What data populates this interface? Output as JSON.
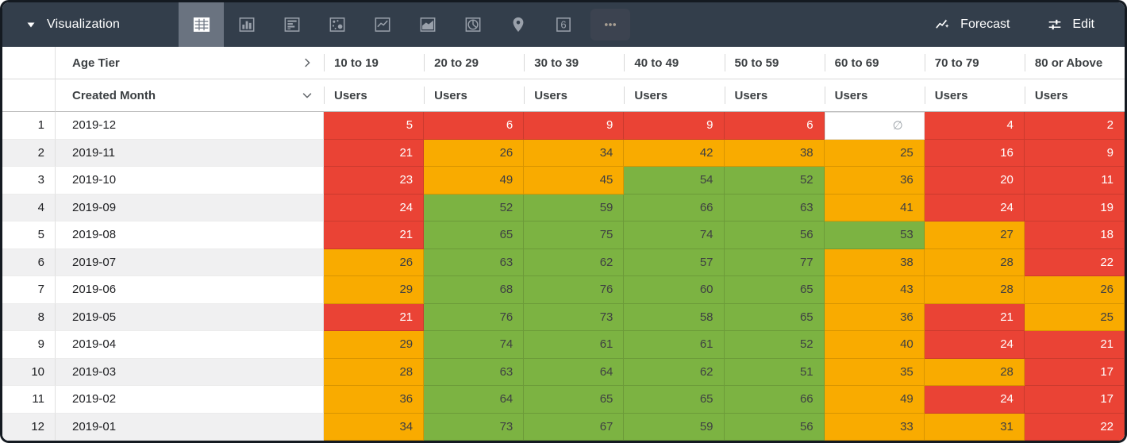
{
  "toolbar": {
    "title": "Visualization",
    "forecast_label": "Forecast",
    "edit_label": "Edit",
    "single_value_glyph": "6",
    "tabs": [
      {
        "name": "table",
        "selected": true
      },
      {
        "name": "column-chart",
        "selected": false
      },
      {
        "name": "bar-chart",
        "selected": false
      },
      {
        "name": "scatter-plot",
        "selected": false
      },
      {
        "name": "line-chart",
        "selected": false
      },
      {
        "name": "area-chart",
        "selected": false
      },
      {
        "name": "pie-chart",
        "selected": false
      },
      {
        "name": "map",
        "selected": false
      },
      {
        "name": "single-value",
        "selected": false
      },
      {
        "name": "more-options",
        "selected": false
      }
    ]
  },
  "table": {
    "pivot_field": "Age Tier",
    "row_field": "Created Month",
    "measure": "Users",
    "null_symbol": "∅",
    "columns": [
      "10 to 19",
      "20 to 29",
      "30 to 39",
      "40 to 49",
      "50 to 59",
      "60 to 69",
      "70 to 79",
      "80 or Above"
    ],
    "rows": [
      {
        "num": "1",
        "month": "2019-12",
        "values": [
          "5",
          "6",
          "9",
          "9",
          "6",
          null,
          "4",
          "2"
        ],
        "colors": [
          "red",
          "red",
          "red",
          "red",
          "red",
          "none",
          "red",
          "red"
        ]
      },
      {
        "num": "2",
        "month": "2019-11",
        "values": [
          "21",
          "26",
          "34",
          "42",
          "38",
          "25",
          "16",
          "9"
        ],
        "colors": [
          "red",
          "orange",
          "orange",
          "orange",
          "orange",
          "orange",
          "red",
          "red"
        ]
      },
      {
        "num": "3",
        "month": "2019-10",
        "values": [
          "23",
          "49",
          "45",
          "54",
          "52",
          "36",
          "20",
          "11"
        ],
        "colors": [
          "red",
          "orange",
          "orange",
          "green",
          "green",
          "orange",
          "red",
          "red"
        ]
      },
      {
        "num": "4",
        "month": "2019-09",
        "values": [
          "24",
          "52",
          "59",
          "66",
          "63",
          "41",
          "24",
          "19"
        ],
        "colors": [
          "red",
          "green",
          "green",
          "green",
          "green",
          "orange",
          "red",
          "red"
        ]
      },
      {
        "num": "5",
        "month": "2019-08",
        "values": [
          "21",
          "65",
          "75",
          "74",
          "56",
          "53",
          "27",
          "18"
        ],
        "colors": [
          "red",
          "green",
          "green",
          "green",
          "green",
          "green",
          "orange",
          "red"
        ]
      },
      {
        "num": "6",
        "month": "2019-07",
        "values": [
          "26",
          "63",
          "62",
          "57",
          "77",
          "38",
          "28",
          "22"
        ],
        "colors": [
          "orange",
          "green",
          "green",
          "green",
          "green",
          "orange",
          "orange",
          "red"
        ]
      },
      {
        "num": "7",
        "month": "2019-06",
        "values": [
          "29",
          "68",
          "76",
          "60",
          "65",
          "43",
          "28",
          "26"
        ],
        "colors": [
          "orange",
          "green",
          "green",
          "green",
          "green",
          "orange",
          "orange",
          "orange"
        ]
      },
      {
        "num": "8",
        "month": "2019-05",
        "values": [
          "21",
          "76",
          "73",
          "58",
          "65",
          "36",
          "21",
          "25"
        ],
        "colors": [
          "red",
          "green",
          "green",
          "green",
          "green",
          "orange",
          "red",
          "orange"
        ]
      },
      {
        "num": "9",
        "month": "2019-04",
        "values": [
          "29",
          "74",
          "61",
          "61",
          "52",
          "40",
          "24",
          "21"
        ],
        "colors": [
          "orange",
          "green",
          "green",
          "green",
          "green",
          "orange",
          "red",
          "red"
        ]
      },
      {
        "num": "10",
        "month": "2019-03",
        "values": [
          "28",
          "63",
          "64",
          "62",
          "51",
          "35",
          "28",
          "17"
        ],
        "colors": [
          "orange",
          "green",
          "green",
          "green",
          "green",
          "orange",
          "orange",
          "red"
        ]
      },
      {
        "num": "11",
        "month": "2019-02",
        "values": [
          "36",
          "64",
          "65",
          "65",
          "66",
          "49",
          "24",
          "17"
        ],
        "colors": [
          "orange",
          "green",
          "green",
          "green",
          "green",
          "orange",
          "red",
          "red"
        ]
      },
      {
        "num": "12",
        "month": "2019-01",
        "values": [
          "34",
          "73",
          "67",
          "59",
          "56",
          "33",
          "31",
          "22"
        ],
        "colors": [
          "orange",
          "green",
          "green",
          "green",
          "green",
          "orange",
          "orange",
          "red"
        ]
      }
    ]
  },
  "colors": {
    "red": "#EA4335",
    "orange": "#F9AB00",
    "green": "#7CB342",
    "null_bg": "#FFFFFF",
    "toolbar_bg": "#333E4B",
    "selected_tab_bg": "#6A7380"
  }
}
